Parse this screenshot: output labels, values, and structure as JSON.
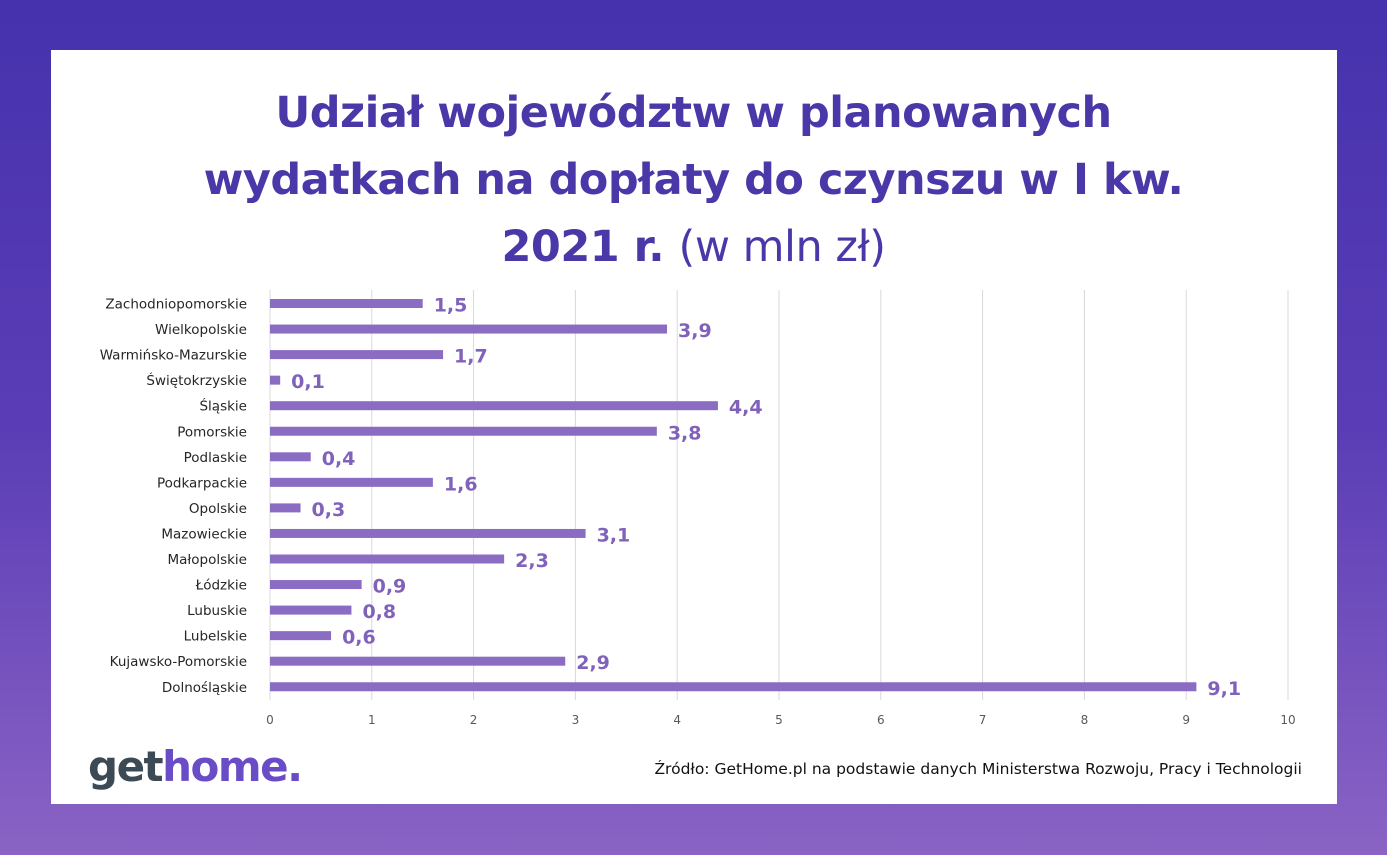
{
  "title": {
    "line1": "Udział  województw w planowanych",
    "line2": "wydatkach na dopłaty do czynszu w I kw.",
    "line3_bold": "2021 r.",
    "line3_thin": "(w mln zł)"
  },
  "source": "Źródło: GetHome.pl na podstawie danych Ministerstwa Rozwoju, Pracy i Technologii",
  "logo": {
    "part1": "get",
    "part2": "home."
  },
  "colors": {
    "bar": "#8b6cc3",
    "label": "#8162bb",
    "title": "#4a37a8",
    "frame": "#4632ad"
  },
  "chart_data": {
    "type": "bar",
    "orientation": "horizontal",
    "categories": [
      "Zachodniopomorskie",
      "Wielkopolskie",
      "Warmińsko-Mazurskie",
      "Świętokrzyskie",
      "Śląskie",
      "Pomorskie",
      "Podlaskie",
      "Podkarpackie",
      "Opolskie",
      "Mazowieckie",
      "Małopolskie",
      "Łódzkie",
      "Lubuskie",
      "Lubelskie",
      "Kujawsko-Pomorskie",
      "Dolnośląskie"
    ],
    "values": [
      1.5,
      3.9,
      1.7,
      0.1,
      4.4,
      3.8,
      0.4,
      1.6,
      0.3,
      3.1,
      2.3,
      0.9,
      0.8,
      0.6,
      2.9,
      9.1
    ],
    "value_labels": [
      "1,5",
      "3,9",
      "1,7",
      "0,1",
      "4,4",
      "3,8",
      "0,4",
      "1,6",
      "0,3",
      "3,1",
      "2,3",
      "0,9",
      "0,8",
      "0,6",
      "2,9",
      "9,1"
    ],
    "xlim": [
      0,
      10
    ],
    "xticks": [
      "0",
      "1",
      "2",
      "3",
      "4",
      "5",
      "6",
      "7",
      "8",
      "9",
      "10"
    ],
    "grid": "vertical"
  }
}
